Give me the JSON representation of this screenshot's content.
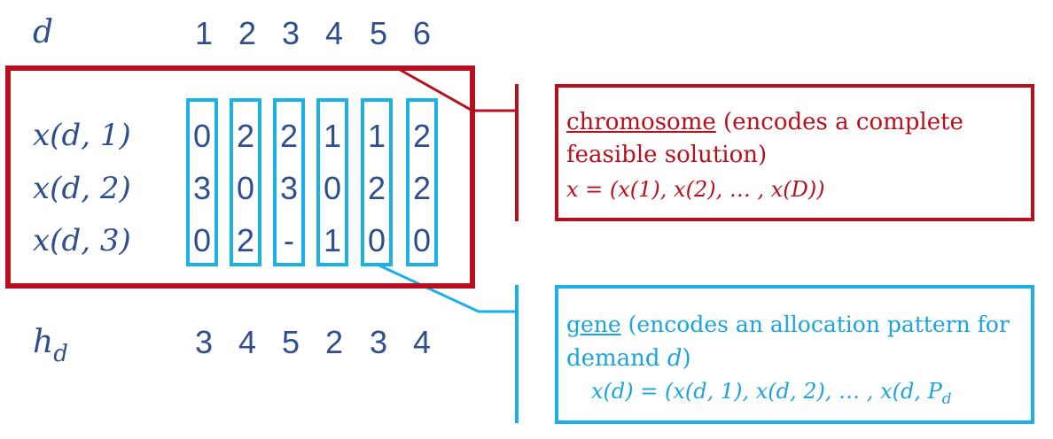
{
  "header": {
    "d_label": "d",
    "columns": [
      "1",
      "2",
      "3",
      "4",
      "5",
      "6"
    ]
  },
  "rows": [
    {
      "label": "x(d, 1)",
      "values": [
        "0",
        "2",
        "2",
        "1",
        "1",
        "2"
      ]
    },
    {
      "label": "x(d, 2)",
      "values": [
        "3",
        "0",
        "3",
        "0",
        "2",
        "2"
      ]
    },
    {
      "label": "x(d, 3)",
      "values": [
        "0",
        "2",
        "-",
        "1",
        "0",
        "0"
      ]
    }
  ],
  "footer": {
    "h_label": "h",
    "h_sub": "d",
    "values": [
      "3",
      "4",
      "5",
      "2",
      "3",
      "4"
    ]
  },
  "chromosome_callout": {
    "term": "chromosome",
    "line1_rest": " (encodes a complete",
    "line2": "feasible solution)",
    "formula": "x = (x(1), x(2), … , x(D))"
  },
  "gene_callout": {
    "term": "gene",
    "line1_rest": " (encodes an allocation pattern for",
    "line2_text": "demand ",
    "line2_var": "d",
    "line2_close": ")",
    "formula_main": "x(d) = (x(d, 1), x(d, 2), … , x(d, P",
    "formula_sub": "d"
  },
  "colors": {
    "navy": "#2f4e8e",
    "red": "#b80f1c",
    "cyan": "#1ab0e8"
  }
}
